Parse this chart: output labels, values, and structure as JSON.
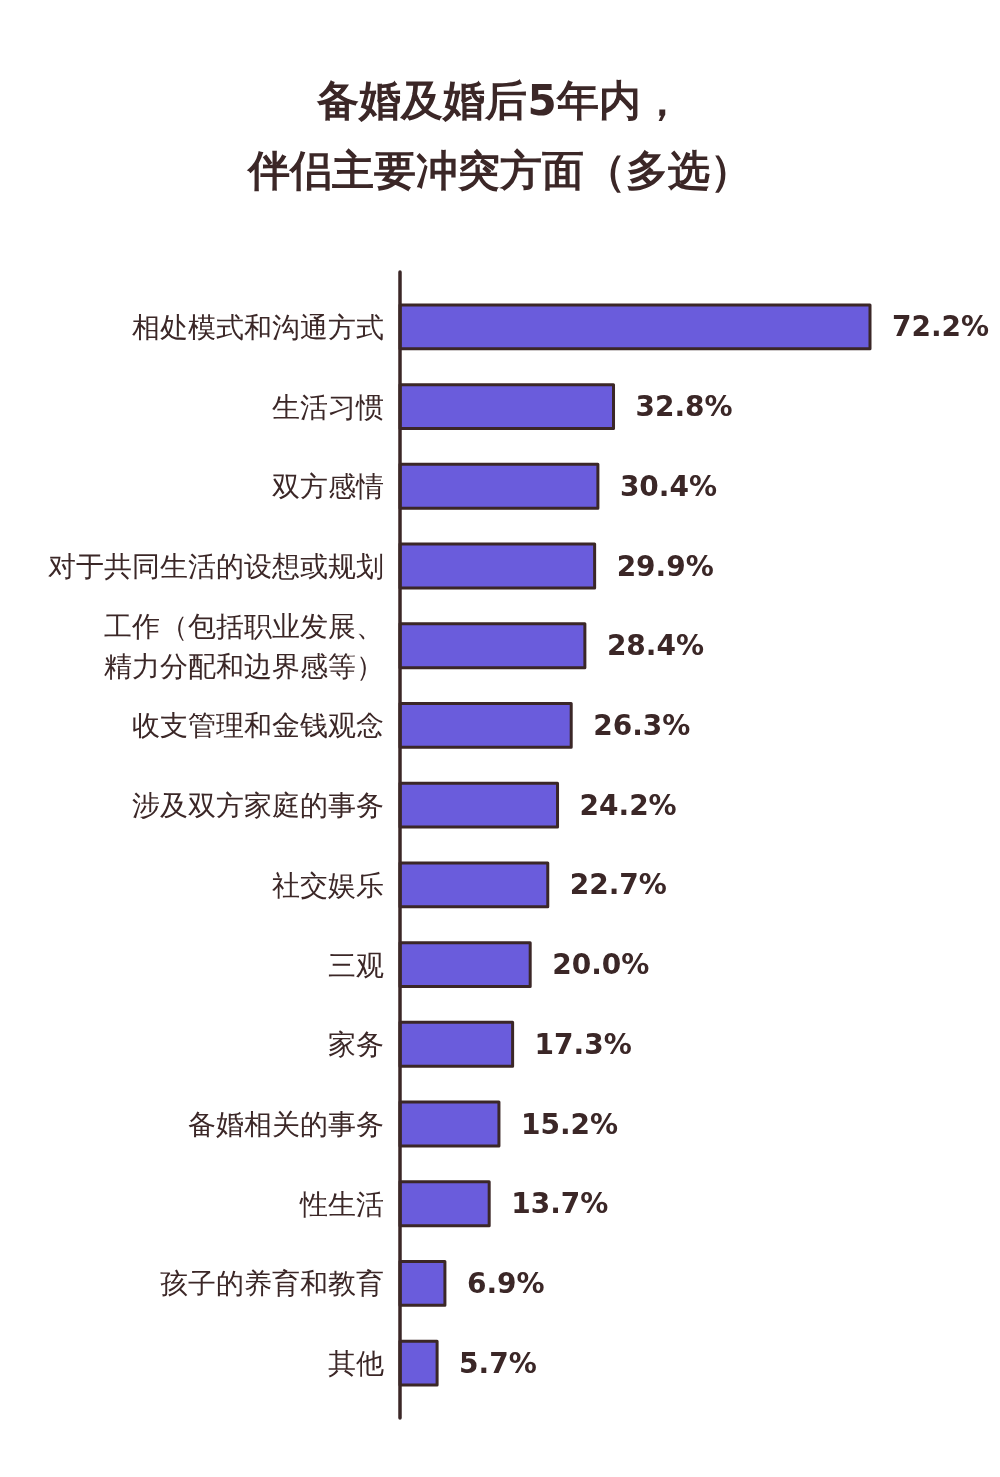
{
  "chart_data": {
    "type": "bar",
    "orientation": "horizontal",
    "title": "备婚及婚后5年内，伴侣主要冲突方面（多选）",
    "categories": [
      "相处模式和沟通方式",
      "生活习惯",
      "双方感情",
      "对于共同生活的设想或规划",
      "工作（包括职业发展、精力分配和边界感等）",
      "收支管理和金钱观念",
      "涉及双方家庭的事务",
      "社交娱乐",
      "三观",
      "家务",
      "备婚相关的事务",
      "性生活",
      "孩子的养育和教育",
      "其他"
    ],
    "values": [
      72.2,
      32.8,
      30.4,
      29.9,
      28.4,
      26.3,
      24.2,
      22.7,
      20.0,
      17.3,
      15.2,
      13.7,
      6.9,
      5.7
    ],
    "value_labels": [
      "72.2%",
      "32.8%",
      "30.4%",
      "29.9%",
      "28.4%",
      "26.3%",
      "24.2%",
      "22.7%",
      "20.0%",
      "17.3%",
      "15.2%",
      "13.7%",
      "6.9%",
      "5.7%"
    ],
    "color": "#6a5cdc"
  }
}
